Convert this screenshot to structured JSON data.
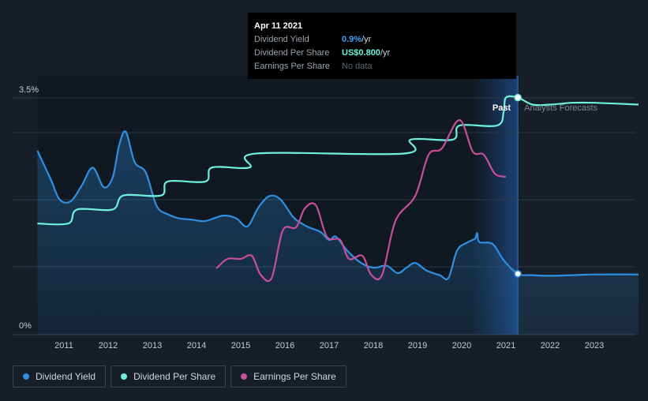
{
  "tooltip": {
    "date": "Apr 11 2021",
    "rows": [
      {
        "label": "Dividend Yield",
        "value": "0.9%",
        "unit": " /yr"
      },
      {
        "label": "Dividend Per Share",
        "value": "US$0.800",
        "unit": " /yr"
      },
      {
        "label": "Earnings Per Share",
        "value": "No data",
        "unit": ""
      }
    ]
  },
  "legend": [
    {
      "label": "Dividend Yield",
      "color": "#2f8fe0"
    },
    {
      "label": "Dividend Per Share",
      "color": "#6ff0dc"
    },
    {
      "label": "Earnings Per Share",
      "color": "#c64f9b"
    }
  ],
  "chart_data": {
    "type": "line",
    "x_ticks": [
      "2011",
      "2012",
      "2013",
      "2014",
      "2015",
      "2016",
      "2017",
      "2018",
      "2019",
      "2020",
      "2021",
      "2022",
      "2023"
    ],
    "y_ticks": [
      "3.5%",
      "0%"
    ],
    "xlim": [
      2010.4,
      2024.0
    ],
    "ylim": [
      0,
      3.5
    ],
    "past_label": "Past",
    "forecast_label": "Analysts Forecasts",
    "past_end": 2021.27,
    "past_shade_start": 2020.28,
    "colors": {
      "yield": "#2f8fe0",
      "dps": "#6ff0dc",
      "eps": "#c64f9b"
    },
    "series": [
      {
        "name": "Dividend Yield",
        "key": "yield",
        "unit": "%",
        "values": [
          [
            2010.4,
            2.72
          ],
          [
            2010.7,
            2.3
          ],
          [
            2010.9,
            2.0
          ],
          [
            2011.15,
            1.97
          ],
          [
            2011.4,
            2.2
          ],
          [
            2011.65,
            2.47
          ],
          [
            2011.9,
            2.18
          ],
          [
            2012.1,
            2.32
          ],
          [
            2012.25,
            2.8
          ],
          [
            2012.4,
            3.0
          ],
          [
            2012.6,
            2.55
          ],
          [
            2012.85,
            2.4
          ],
          [
            2013.1,
            1.9
          ],
          [
            2013.35,
            1.78
          ],
          [
            2013.6,
            1.72
          ],
          [
            2013.9,
            1.7
          ],
          [
            2014.2,
            1.68
          ],
          [
            2014.6,
            1.76
          ],
          [
            2014.9,
            1.72
          ],
          [
            2015.15,
            1.6
          ],
          [
            2015.4,
            1.88
          ],
          [
            2015.65,
            2.05
          ],
          [
            2015.9,
            2.0
          ],
          [
            2016.2,
            1.73
          ],
          [
            2016.5,
            1.6
          ],
          [
            2016.8,
            1.52
          ],
          [
            2017.0,
            1.4
          ],
          [
            2017.15,
            1.45
          ],
          [
            2017.4,
            1.25
          ],
          [
            2017.7,
            1.07
          ],
          [
            2018.0,
            0.99
          ],
          [
            2018.3,
            1.02
          ],
          [
            2018.55,
            0.91
          ],
          [
            2018.75,
            0.99
          ],
          [
            2018.95,
            1.06
          ],
          [
            2019.2,
            0.95
          ],
          [
            2019.5,
            0.88
          ],
          [
            2019.7,
            0.84
          ],
          [
            2019.9,
            1.25
          ],
          [
            2020.15,
            1.37
          ],
          [
            2020.3,
            1.42
          ],
          [
            2020.35,
            1.5
          ],
          [
            2020.4,
            1.37
          ],
          [
            2020.7,
            1.34
          ],
          [
            2020.95,
            1.1
          ],
          [
            2021.27,
            0.9
          ],
          [
            2021.6,
            0.88
          ],
          [
            2022.0,
            0.87
          ],
          [
            2022.5,
            0.88
          ],
          [
            2023.0,
            0.89
          ],
          [
            2024.0,
            0.89
          ]
        ]
      },
      {
        "name": "Dividend Per Share",
        "key": "dps",
        "unit": "US$",
        "values": [
          [
            2010.4,
            0.44
          ],
          [
            2011.1,
            0.44
          ],
          [
            2011.3,
            0.48
          ],
          [
            2012.1,
            0.48
          ],
          [
            2012.35,
            0.52
          ],
          [
            2013.2,
            0.52
          ],
          [
            2013.35,
            0.56
          ],
          [
            2014.2,
            0.56
          ],
          [
            2014.35,
            0.6
          ],
          [
            2015.2,
            0.6
          ],
          [
            2015.35,
            0.64
          ],
          [
            2018.7,
            0.64
          ],
          [
            2018.85,
            0.68
          ],
          [
            2019.8,
            0.68
          ],
          [
            2019.95,
            0.72
          ],
          [
            2020.8,
            0.72
          ],
          [
            2020.95,
            0.76
          ],
          [
            2021.0,
            0.8
          ],
          [
            2021.27,
            0.8
          ],
          [
            2021.6,
            0.78
          ],
          [
            2022.0,
            0.78
          ],
          [
            2022.5,
            0.785
          ],
          [
            2023.0,
            0.785
          ],
          [
            2024.0,
            0.78
          ]
        ]
      },
      {
        "name": "Earnings Per Share",
        "key": "eps",
        "unit": "US$",
        "values": [
          [
            2014.45,
            0.17
          ],
          [
            2014.7,
            0.2
          ],
          [
            2015.0,
            0.2
          ],
          [
            2015.25,
            0.21
          ],
          [
            2015.45,
            0.15
          ],
          [
            2015.7,
            0.14
          ],
          [
            2015.95,
            0.29
          ],
          [
            2016.25,
            0.3
          ],
          [
            2016.45,
            0.36
          ],
          [
            2016.7,
            0.37
          ],
          [
            2016.95,
            0.27
          ],
          [
            2017.25,
            0.26
          ],
          [
            2017.45,
            0.2
          ],
          [
            2017.75,
            0.21
          ],
          [
            2017.95,
            0.15
          ],
          [
            2018.2,
            0.15
          ],
          [
            2018.5,
            0.32
          ],
          [
            2018.95,
            0.4
          ],
          [
            2019.25,
            0.53
          ],
          [
            2019.55,
            0.55
          ],
          [
            2019.95,
            0.64
          ],
          [
            2020.25,
            0.54
          ],
          [
            2020.5,
            0.53
          ],
          [
            2020.75,
            0.47
          ],
          [
            2021.0,
            0.46
          ]
        ]
      }
    ],
    "hover_markers": [
      {
        "series": "dps",
        "x": 2021.27,
        "y": 0.8
      },
      {
        "series": "yield",
        "x": 2021.27,
        "y": 0.9
      }
    ]
  }
}
